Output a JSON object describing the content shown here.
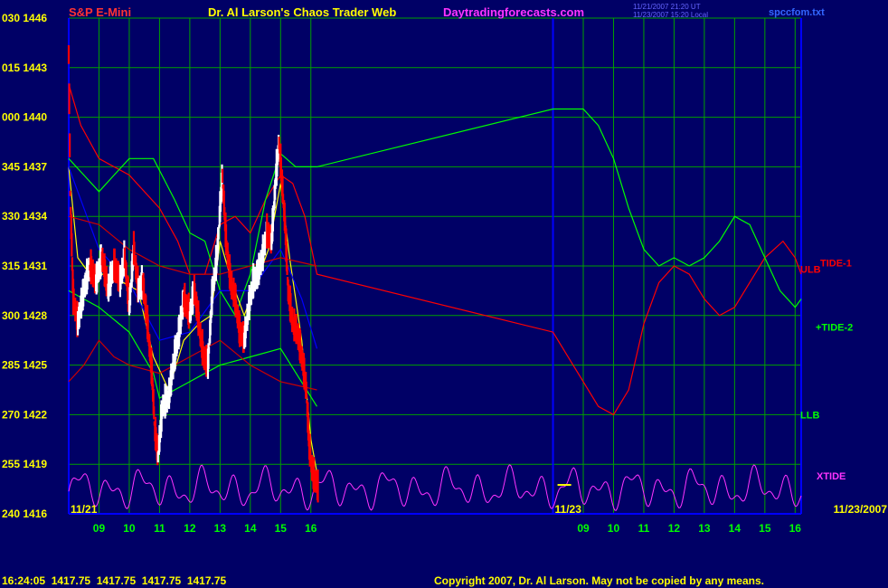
{
  "header": {
    "symbol": "S&P E-Mini",
    "title": "Dr. Al Larson's Chaos Trader Web",
    "site": "Daytradingforecasts.com",
    "stamp1": "11/21/2007 21:20 UT",
    "stamp2": "11/23/2007 15:20 Local",
    "file": "spccfom.txt"
  },
  "footer": {
    "quote": "16:24:05  1417.75  1417.75  1417.75  1417.75",
    "copyright": "Copyright 2007, Dr. Al Larson. May not be copied by any means."
  },
  "colors": {
    "background": "#000066",
    "grid": "#00a000",
    "border": "#0000ff",
    "price_up": "#ffffff",
    "price_down": "#ff0000",
    "tide1": "#ff0000",
    "tide2": "#00ff00",
    "xtide": "#ff33ff",
    "avg": "#ffff00",
    "blue_line": "#0000ff",
    "red_band": "#cc0000"
  },
  "chart_data": {
    "type": "line",
    "title": "S&P E-Mini",
    "y_ticks": [
      {
        "label": "030 1446",
        "value": 1446
      },
      {
        "label": "015 1443",
        "value": 1443
      },
      {
        "label": "000 1440",
        "value": 1440
      },
      {
        "label": "345 1437",
        "value": 1437
      },
      {
        "label": "330 1434",
        "value": 1434
      },
      {
        "label": "315 1431",
        "value": 1431
      },
      {
        "label": "300 1428",
        "value": 1428
      },
      {
        "label": "285 1425",
        "value": 1425
      },
      {
        "label": "270 1422",
        "value": 1422
      },
      {
        "label": "255 1419",
        "value": 1419
      },
      {
        "label": "240 1416",
        "value": 1416
      }
    ],
    "ylim": [
      1416,
      1446
    ],
    "x_ticks": [
      "09",
      "10",
      "11",
      "12",
      "13",
      "14",
      "15",
      "16",
      "09",
      "10",
      "11",
      "12",
      "13",
      "14",
      "15",
      "16"
    ],
    "x_tick_hours": [
      9,
      10,
      11,
      12,
      13,
      14,
      15,
      16,
      25,
      26,
      27,
      28,
      29,
      30,
      31,
      32
    ],
    "xlim": [
      8,
      32.2
    ],
    "date_labels": [
      {
        "text": "11/21",
        "hour": 8.0
      },
      {
        "text": "11/23",
        "hour": 24.0
      },
      {
        "text": "11/23/2007",
        "hour": 32.2
      }
    ],
    "session_divider_hour": 24.0,
    "line_labels": [
      "ULB",
      "TIDE-1",
      "+TIDE-2",
      "LLB",
      "XTIDE"
    ],
    "current_price": 1417.75,
    "grid": true,
    "price": [
      {
        "x": 8.0,
        "y": 1443.8
      },
      {
        "x": 8.05,
        "y": 1435.5
      },
      {
        "x": 8.15,
        "y": 1429.0
      },
      {
        "x": 8.3,
        "y": 1427.5
      },
      {
        "x": 8.5,
        "y": 1429.5
      },
      {
        "x": 8.7,
        "y": 1431.0
      },
      {
        "x": 8.9,
        "y": 1430.0
      },
      {
        "x": 9.1,
        "y": 1431.5
      },
      {
        "x": 9.3,
        "y": 1429.5
      },
      {
        "x": 9.5,
        "y": 1431.0
      },
      {
        "x": 9.7,
        "y": 1430.0
      },
      {
        "x": 9.85,
        "y": 1431.5
      },
      {
        "x": 10.0,
        "y": 1428.5
      },
      {
        "x": 10.15,
        "y": 1432.0
      },
      {
        "x": 10.3,
        "y": 1429.5
      },
      {
        "x": 10.45,
        "y": 1430.0
      },
      {
        "x": 10.6,
        "y": 1427.5
      },
      {
        "x": 10.75,
        "y": 1424.5
      },
      {
        "x": 10.85,
        "y": 1421.0
      },
      {
        "x": 10.95,
        "y": 1419.5
      },
      {
        "x": 11.1,
        "y": 1422.5
      },
      {
        "x": 11.3,
        "y": 1423.0
      },
      {
        "x": 11.5,
        "y": 1425.5
      },
      {
        "x": 11.65,
        "y": 1427.0
      },
      {
        "x": 11.8,
        "y": 1429.0
      },
      {
        "x": 12.0,
        "y": 1428.0
      },
      {
        "x": 12.15,
        "y": 1429.5
      },
      {
        "x": 12.3,
        "y": 1427.5
      },
      {
        "x": 12.45,
        "y": 1425.5
      },
      {
        "x": 12.6,
        "y": 1425.0
      },
      {
        "x": 12.75,
        "y": 1429.5
      },
      {
        "x": 12.9,
        "y": 1431.5
      },
      {
        "x": 13.0,
        "y": 1434.5
      },
      {
        "x": 13.08,
        "y": 1436.5
      },
      {
        "x": 13.2,
        "y": 1432.5
      },
      {
        "x": 13.35,
        "y": 1430.0
      },
      {
        "x": 13.5,
        "y": 1429.0
      },
      {
        "x": 13.65,
        "y": 1427.0
      },
      {
        "x": 13.8,
        "y": 1426.5
      },
      {
        "x": 13.95,
        "y": 1428.5
      },
      {
        "x": 14.1,
        "y": 1430.0
      },
      {
        "x": 14.25,
        "y": 1430.5
      },
      {
        "x": 14.4,
        "y": 1431.5
      },
      {
        "x": 14.55,
        "y": 1433.0
      },
      {
        "x": 14.7,
        "y": 1432.5
      },
      {
        "x": 14.85,
        "y": 1436.5
      },
      {
        "x": 14.95,
        "y": 1438.5
      },
      {
        "x": 15.05,
        "y": 1436.0
      },
      {
        "x": 15.15,
        "y": 1433.5
      },
      {
        "x": 15.25,
        "y": 1429.5
      },
      {
        "x": 15.4,
        "y": 1427.5
      },
      {
        "x": 15.55,
        "y": 1427.0
      },
      {
        "x": 15.7,
        "y": 1425.5
      },
      {
        "x": 15.85,
        "y": 1423.5
      },
      {
        "x": 15.95,
        "y": 1420.0
      },
      {
        "x": 16.05,
        "y": 1418.5
      },
      {
        "x": 16.15,
        "y": 1418.0
      },
      {
        "x": 16.25,
        "y": 1417.5
      },
      {
        "x": 24.0,
        "y": 1417.5
      }
    ],
    "series": [
      {
        "name": "TIDE-1",
        "values": [
          {
            "x": 8.0,
            "y": 1442.0
          },
          {
            "x": 8.4,
            "y": 1439.5
          },
          {
            "x": 9.0,
            "y": 1437.5
          },
          {
            "x": 10.0,
            "y": 1436.5
          },
          {
            "x": 11.0,
            "y": 1434.5
          },
          {
            "x": 11.6,
            "y": 1432.5
          },
          {
            "x": 12.0,
            "y": 1430.5
          },
          {
            "x": 12.5,
            "y": 1430.5
          },
          {
            "x": 13.0,
            "y": 1433.5
          },
          {
            "x": 13.5,
            "y": 1434.0
          },
          {
            "x": 14.0,
            "y": 1433.0
          },
          {
            "x": 14.5,
            "y": 1435.0
          },
          {
            "x": 15.0,
            "y": 1436.5
          },
          {
            "x": 15.4,
            "y": 1436.0
          },
          {
            "x": 15.8,
            "y": 1434.0
          },
          {
            "x": 16.2,
            "y": 1430.5
          },
          {
            "x": 24.0,
            "y": 1427.0
          },
          {
            "x": 25.5,
            "y": 1422.5
          },
          {
            "x": 26.0,
            "y": 1422.0
          },
          {
            "x": 26.5,
            "y": 1423.5
          },
          {
            "x": 27.0,
            "y": 1427.5
          },
          {
            "x": 27.5,
            "y": 1430.0
          },
          {
            "x": 28.0,
            "y": 1431.0
          },
          {
            "x": 28.5,
            "y": 1430.5
          },
          {
            "x": 29.0,
            "y": 1429.0
          },
          {
            "x": 29.5,
            "y": 1428.0
          },
          {
            "x": 30.0,
            "y": 1428.5
          },
          {
            "x": 30.5,
            "y": 1430.0
          },
          {
            "x": 31.0,
            "y": 1431.5
          },
          {
            "x": 31.6,
            "y": 1432.5
          },
          {
            "x": 32.0,
            "y": 1431.5
          },
          {
            "x": 32.2,
            "y": 1430.5
          }
        ]
      },
      {
        "name": "+TIDE-2",
        "values": [
          {
            "x": 8.0,
            "y": 1437.5
          },
          {
            "x": 8.5,
            "y": 1436.5
          },
          {
            "x": 9.0,
            "y": 1435.5
          },
          {
            "x": 9.5,
            "y": 1436.5
          },
          {
            "x": 10.0,
            "y": 1437.5
          },
          {
            "x": 10.8,
            "y": 1437.5
          },
          {
            "x": 11.5,
            "y": 1435.0
          },
          {
            "x": 12.0,
            "y": 1433.0
          },
          {
            "x": 12.5,
            "y": 1432.5
          },
          {
            "x": 13.0,
            "y": 1429.5
          },
          {
            "x": 13.5,
            "y": 1428.0
          },
          {
            "x": 14.0,
            "y": 1430.5
          },
          {
            "x": 14.5,
            "y": 1435.0
          },
          {
            "x": 15.0,
            "y": 1437.8
          },
          {
            "x": 15.5,
            "y": 1437.0
          },
          {
            "x": 16.2,
            "y": 1437.0
          },
          {
            "x": 24.0,
            "y": 1440.5
          },
          {
            "x": 25.0,
            "y": 1440.5
          },
          {
            "x": 25.5,
            "y": 1439.5
          },
          {
            "x": 26.0,
            "y": 1437.5
          },
          {
            "x": 26.5,
            "y": 1434.5
          },
          {
            "x": 27.0,
            "y": 1432.0
          },
          {
            "x": 27.5,
            "y": 1431.0
          },
          {
            "x": 28.0,
            "y": 1431.5
          },
          {
            "x": 28.5,
            "y": 1431.0
          },
          {
            "x": 29.0,
            "y": 1431.5
          },
          {
            "x": 29.5,
            "y": 1432.5
          },
          {
            "x": 30.0,
            "y": 1434.0
          },
          {
            "x": 30.5,
            "y": 1433.5
          },
          {
            "x": 31.0,
            "y": 1431.5
          },
          {
            "x": 31.5,
            "y": 1429.5
          },
          {
            "x": 32.0,
            "y": 1428.5
          },
          {
            "x": 32.2,
            "y": 1429.0
          }
        ]
      },
      {
        "name": "Yellow",
        "values": [
          {
            "x": 8.0,
            "y": 1437.0
          },
          {
            "x": 8.3,
            "y": 1431.5
          },
          {
            "x": 8.7,
            "y": 1430.5
          },
          {
            "x": 9.2,
            "y": 1430.5
          },
          {
            "x": 9.8,
            "y": 1430.0
          },
          {
            "x": 10.3,
            "y": 1429.5
          },
          {
            "x": 10.8,
            "y": 1425.5
          },
          {
            "x": 11.3,
            "y": 1423.5
          },
          {
            "x": 11.8,
            "y": 1426.5
          },
          {
            "x": 12.3,
            "y": 1427.5
          },
          {
            "x": 12.7,
            "y": 1428.0
          },
          {
            "x": 13.0,
            "y": 1432.5
          },
          {
            "x": 13.4,
            "y": 1430.0
          },
          {
            "x": 13.8,
            "y": 1428.0
          },
          {
            "x": 14.2,
            "y": 1430.0
          },
          {
            "x": 14.6,
            "y": 1432.0
          },
          {
            "x": 15.0,
            "y": 1436.0
          },
          {
            "x": 15.3,
            "y": 1431.5
          },
          {
            "x": 15.7,
            "y": 1426.5
          },
          {
            "x": 16.0,
            "y": 1420.5
          },
          {
            "x": 16.2,
            "y": 1418.5
          }
        ]
      },
      {
        "name": "Blue",
        "values": [
          {
            "x": 8.0,
            "y": 1437.0
          },
          {
            "x": 9.0,
            "y": 1432.0
          },
          {
            "x": 10.0,
            "y": 1430.0
          },
          {
            "x": 11.0,
            "y": 1426.5
          },
          {
            "x": 12.0,
            "y": 1427.0
          },
          {
            "x": 13.0,
            "y": 1429.5
          },
          {
            "x": 14.0,
            "y": 1429.5
          },
          {
            "x": 15.0,
            "y": 1432.0
          },
          {
            "x": 15.7,
            "y": 1429.0
          },
          {
            "x": 16.2,
            "y": 1426.0
          }
        ]
      },
      {
        "name": "ULB",
        "values": [
          {
            "x": 8.0,
            "y": 1434.0
          },
          {
            "x": 9.0,
            "y": 1433.5
          },
          {
            "x": 10.0,
            "y": 1432.0
          },
          {
            "x": 11.0,
            "y": 1431.0
          },
          {
            "x": 12.0,
            "y": 1430.5
          },
          {
            "x": 13.0,
            "y": 1430.5
          },
          {
            "x": 14.0,
            "y": 1431.0
          },
          {
            "x": 15.0,
            "y": 1431.5
          },
          {
            "x": 16.2,
            "y": 1431.0
          }
        ]
      },
      {
        "name": "LLB",
        "values": [
          {
            "x": 8.0,
            "y": 1429.5
          },
          {
            "x": 9.0,
            "y": 1428.5
          },
          {
            "x": 10.0,
            "y": 1427.0
          },
          {
            "x": 10.8,
            "y": 1424.5
          },
          {
            "x": 11.0,
            "y": 1423.0
          },
          {
            "x": 11.5,
            "y": 1423.5
          },
          {
            "x": 12.0,
            "y": 1424.0
          },
          {
            "x": 12.5,
            "y": 1424.5
          },
          {
            "x": 13.0,
            "y": 1425.0
          },
          {
            "x": 14.0,
            "y": 1425.5
          },
          {
            "x": 15.0,
            "y": 1426.0
          },
          {
            "x": 16.2,
            "y": 1422.5
          }
        ]
      },
      {
        "name": "Red band",
        "values": [
          {
            "x": 8.0,
            "y": 1424.0
          },
          {
            "x": 8.5,
            "y": 1425.0
          },
          {
            "x": 9.0,
            "y": 1426.5
          },
          {
            "x": 9.5,
            "y": 1425.5
          },
          {
            "x": 10.0,
            "y": 1425.0
          },
          {
            "x": 11.0,
            "y": 1424.5
          },
          {
            "x": 12.0,
            "y": 1425.5
          },
          {
            "x": 13.0,
            "y": 1426.5
          },
          {
            "x": 14.0,
            "y": 1425.0
          },
          {
            "x": 15.0,
            "y": 1424.0
          },
          {
            "x": 16.2,
            "y": 1423.5
          }
        ]
      },
      {
        "name": "XTIDE",
        "base": 1417.5,
        "amp": 1.3
      }
    ]
  }
}
